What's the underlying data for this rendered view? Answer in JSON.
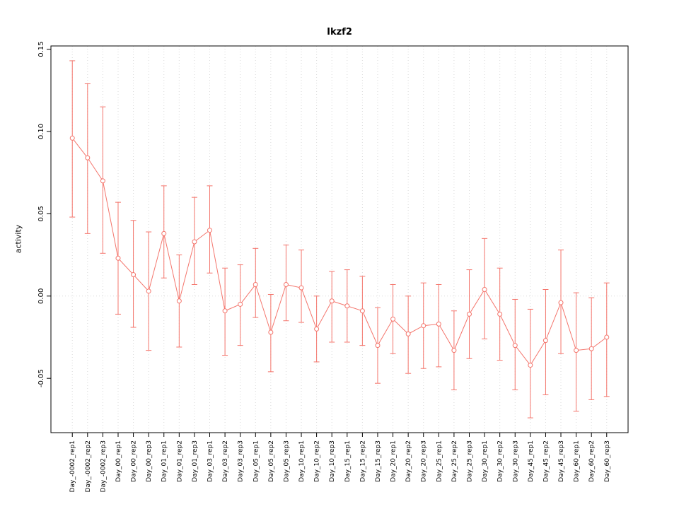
{
  "page": {
    "background": "#ffffff"
  },
  "chart_data": {
    "type": "line",
    "title": "Ikzf2",
    "xlabel": "",
    "ylabel": "activity",
    "legend": "none",
    "grid": true,
    "series_color": "#f4756c",
    "grid_color": "#d9d9d9",
    "axis_color": "#000000",
    "point_style": "open-circle",
    "error_bars": true,
    "ylim": [
      -0.083,
      0.152
    ],
    "ytick_values": [
      -0.05,
      0.0,
      0.05,
      0.1,
      0.15
    ],
    "yticks": [
      "-0.05",
      "0.00",
      "0.05",
      "0.10",
      "0.15"
    ],
    "zero_line": 0,
    "categories": [
      "Day_-0002_rep1",
      "Day_-0002_rep2",
      "Day_-0002_rep3",
      "Day_00_rep1",
      "Day_00_rep2",
      "Day_00_rep3",
      "Day_01_rep1",
      "Day_01_rep2",
      "Day_01_rep3",
      "Day_03_rep1",
      "Day_03_rep2",
      "Day_03_rep3",
      "Day_05_rep1",
      "Day_05_rep2",
      "Day_05_rep3",
      "Day_10_rep1",
      "Day_10_rep2",
      "Day_10_rep3",
      "Day_15_rep1",
      "Day_15_rep2",
      "Day_15_rep3",
      "Day_20_rep1",
      "Day_20_rep2",
      "Day_20_rep3",
      "Day_25_rep1",
      "Day_25_rep2",
      "Day_25_rep3",
      "Day_30_rep1",
      "Day_30_rep2",
      "Day_30_rep3",
      "Day_45_rep1",
      "Day_45_rep2",
      "Day_45_rep3",
      "Day_60_rep1",
      "Day_60_rep2",
      "Day_60_rep3"
    ],
    "values": [
      0.096,
      0.084,
      0.07,
      0.023,
      0.013,
      0.003,
      0.038,
      -0.003,
      0.033,
      0.04,
      -0.009,
      -0.005,
      0.007,
      -0.022,
      0.007,
      0.005,
      -0.02,
      -0.003,
      -0.006,
      -0.009,
      -0.03,
      -0.014,
      -0.023,
      -0.018,
      -0.017,
      -0.033,
      -0.011,
      0.004,
      -0.011,
      -0.03,
      -0.042,
      -0.027,
      -0.004,
      -0.033,
      -0.032,
      -0.025
    ],
    "error_low": [
      0.048,
      0.038,
      0.026,
      -0.011,
      -0.019,
      -0.033,
      0.011,
      -0.031,
      0.007,
      0.014,
      -0.036,
      -0.03,
      -0.013,
      -0.046,
      -0.015,
      -0.016,
      -0.04,
      -0.028,
      -0.028,
      -0.03,
      -0.053,
      -0.035,
      -0.047,
      -0.044,
      -0.043,
      -0.057,
      -0.038,
      -0.026,
      -0.039,
      -0.057,
      -0.074,
      -0.06,
      -0.035,
      -0.07,
      -0.063,
      -0.061
    ],
    "error_high": [
      0.143,
      0.129,
      0.115,
      0.057,
      0.046,
      0.039,
      0.067,
      0.025,
      0.06,
      0.067,
      0.017,
      0.019,
      0.029,
      0.001,
      0.031,
      0.028,
      0.0,
      0.015,
      0.016,
      0.012,
      -0.007,
      0.007,
      0.0,
      0.008,
      0.007,
      -0.009,
      0.016,
      0.035,
      0.017,
      -0.002,
      -0.008,
      0.004,
      0.028,
      0.002,
      -0.001,
      0.008
    ]
  }
}
